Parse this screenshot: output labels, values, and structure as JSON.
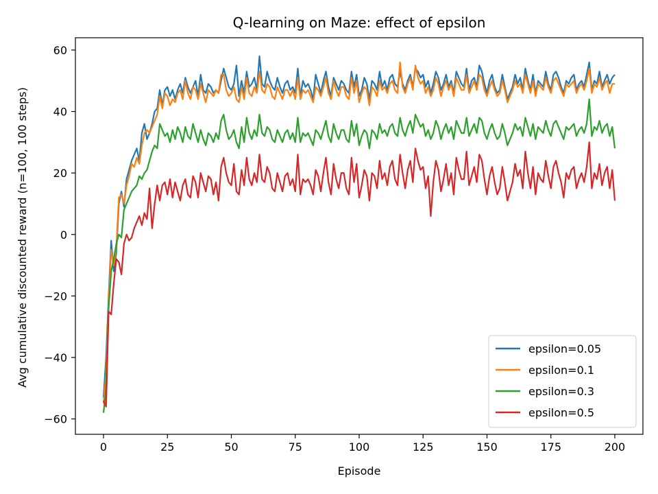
{
  "chart_data": {
    "type": "line",
    "title": "Q-learning on Maze: effect of epsilon",
    "xlabel": "Episode",
    "ylabel": "Avg cumulative discounted reward (n=100, 100 steps)",
    "xlim": [
      -11,
      211
    ],
    "ylim": [
      -65,
      64
    ],
    "xticks": [
      0,
      25,
      50,
      75,
      100,
      125,
      150,
      175,
      200
    ],
    "yticks": [
      -60,
      -40,
      -20,
      0,
      20,
      40,
      60
    ],
    "grid": false,
    "legend_position": "lower-right",
    "series": [
      {
        "name": "epsilon=0.05",
        "color": "#1f77b4",
        "values": [
          -53,
          -40,
          -20,
          -2,
          -12,
          -6,
          10,
          14,
          9,
          18,
          21,
          24,
          26,
          28,
          24,
          33,
          36,
          31,
          33,
          36,
          40,
          41,
          47,
          42,
          47,
          48,
          45,
          47,
          44,
          47,
          49,
          46,
          51,
          48,
          46,
          48,
          50,
          45,
          52,
          47,
          46,
          49,
          48,
          46,
          47,
          46,
          50,
          54,
          51,
          48,
          47,
          49,
          55,
          45,
          50,
          46,
          53,
          48,
          49,
          51,
          47,
          58,
          49,
          48,
          53,
          50,
          48,
          47,
          51,
          48,
          46,
          49,
          50,
          47,
          48,
          46,
          54,
          45,
          50,
          48,
          49,
          47,
          44,
          52,
          49,
          46,
          50,
          53,
          48,
          45,
          51,
          49,
          47,
          50,
          49,
          47,
          46,
          53,
          48,
          52,
          45,
          47,
          51,
          49,
          44,
          50,
          49,
          47,
          53,
          48,
          50,
          47,
          51,
          52,
          49,
          48,
          53,
          49,
          47,
          50,
          52,
          48,
          54,
          53,
          51,
          52,
          48,
          50,
          46,
          49,
          53,
          51,
          47,
          49,
          52,
          48,
          50,
          46,
          53,
          51,
          49,
          48,
          54,
          47,
          50,
          51,
          48,
          55,
          53,
          49,
          46,
          50,
          52,
          48,
          46,
          47,
          52,
          48,
          44,
          46,
          48,
          52,
          49,
          51,
          47,
          54,
          50,
          47,
          52,
          46,
          50,
          49,
          48,
          53,
          49,
          47,
          52,
          53,
          51,
          48,
          46,
          50,
          49,
          51,
          52,
          47,
          49,
          50,
          48,
          52,
          56,
          47,
          50,
          49,
          53,
          48,
          50,
          52,
          49,
          51,
          52
        ]
      },
      {
        "name": "epsilon=0.1",
        "color": "#ff7f0e",
        "values": [
          -55,
          -45,
          -22,
          -5,
          -10,
          -4,
          12,
          13,
          10,
          16,
          19,
          23,
          22,
          25,
          23,
          29,
          33,
          34,
          33,
          35,
          37,
          39,
          45,
          41,
          46,
          45,
          42,
          44,
          43,
          46,
          47,
          44,
          50,
          46,
          44,
          48,
          47,
          44,
          49,
          46,
          43,
          47,
          46,
          45,
          47,
          46,
          52,
          52,
          47,
          45,
          46,
          48,
          44,
          43,
          48,
          44,
          51,
          46,
          45,
          48,
          46,
          53,
          47,
          46,
          49,
          48,
          45,
          44,
          48,
          46,
          44,
          47,
          47,
          45,
          47,
          44,
          51,
          44,
          47,
          46,
          47,
          45,
          43,
          48,
          47,
          45,
          48,
          51,
          46,
          44,
          50,
          47,
          45,
          48,
          48,
          45,
          44,
          51,
          46,
          50,
          43,
          46,
          48,
          47,
          42,
          48,
          47,
          45,
          50,
          47,
          48,
          46,
          49,
          50,
          47,
          46,
          56,
          48,
          46,
          49,
          51,
          47,
          55,
          51,
          49,
          50,
          46,
          48,
          45,
          47,
          51,
          49,
          45,
          48,
          50,
          47,
          49,
          45,
          51,
          49,
          47,
          47,
          52,
          46,
          48,
          50,
          47,
          52,
          51,
          47,
          45,
          48,
          50,
          47,
          45,
          46,
          50,
          47,
          43,
          45,
          47,
          50,
          48,
          49,
          46,
          52,
          49,
          46,
          50,
          45,
          49,
          48,
          47,
          51,
          48,
          46,
          50,
          51,
          49,
          47,
          45,
          49,
          48,
          49,
          50,
          46,
          48,
          49,
          47,
          50,
          54,
          46,
          49,
          48,
          51,
          47,
          49,
          50,
          46,
          49,
          49
        ]
      },
      {
        "name": "epsilon=0.3",
        "color": "#2ca02c",
        "values": [
          -58,
          -50,
          -24,
          -12,
          -8,
          -3,
          0,
          -1,
          8,
          10,
          12,
          14,
          15,
          16,
          19,
          18,
          20,
          21,
          24,
          27,
          29,
          28,
          36,
          34,
          32,
          33,
          30,
          34,
          31,
          35,
          33,
          30,
          35,
          32,
          31,
          36,
          33,
          30,
          34,
          31,
          29,
          33,
          32,
          30,
          33,
          31,
          37,
          39,
          34,
          31,
          32,
          34,
          30,
          28,
          35,
          30,
          38,
          33,
          31,
          34,
          32,
          39,
          33,
          32,
          35,
          34,
          31,
          30,
          34,
          32,
          30,
          33,
          34,
          31,
          33,
          30,
          38,
          30,
          33,
          32,
          33,
          31,
          29,
          34,
          33,
          31,
          34,
          37,
          32,
          30,
          36,
          33,
          31,
          34,
          34,
          31,
          30,
          37,
          32,
          36,
          29,
          32,
          34,
          33,
          28,
          34,
          33,
          31,
          36,
          33,
          34,
          32,
          35,
          36,
          33,
          32,
          38,
          34,
          32,
          35,
          37,
          33,
          39,
          37,
          35,
          36,
          32,
          34,
          31,
          33,
          37,
          35,
          31,
          34,
          36,
          33,
          35,
          31,
          37,
          35,
          33,
          33,
          38,
          32,
          34,
          36,
          33,
          38,
          37,
          33,
          31,
          34,
          36,
          33,
          31,
          32,
          36,
          33,
          29,
          31,
          33,
          36,
          34,
          35,
          32,
          38,
          35,
          32,
          36,
          31,
          35,
          34,
          33,
          37,
          34,
          32,
          36,
          37,
          35,
          33,
          31,
          35,
          34,
          35,
          36,
          32,
          34,
          35,
          33,
          36,
          44,
          32,
          35,
          34,
          37,
          33,
          35,
          36,
          32,
          35,
          28
        ]
      },
      {
        "name": "epsilon=0.5",
        "color": "#d62728",
        "values": [
          -54,
          -56,
          -25,
          -26,
          -16,
          -8,
          -9,
          -13,
          -3,
          0,
          -2,
          -1,
          2,
          4,
          6,
          3,
          7,
          5,
          15,
          2,
          10,
          16,
          11,
          16,
          17,
          13,
          18,
          12,
          17,
          14,
          11,
          16,
          18,
          13,
          12,
          19,
          17,
          12,
          20,
          17,
          14,
          19,
          18,
          13,
          17,
          11,
          22,
          25,
          20,
          17,
          16,
          23,
          14,
          13,
          21,
          16,
          25,
          18,
          16,
          20,
          17,
          26,
          18,
          17,
          22,
          20,
          15,
          14,
          20,
          17,
          14,
          19,
          20,
          16,
          18,
          14,
          26,
          13,
          18,
          17,
          18,
          16,
          13,
          21,
          19,
          14,
          20,
          25,
          17,
          13,
          23,
          18,
          15,
          20,
          20,
          15,
          13,
          25,
          17,
          23,
          12,
          16,
          21,
          19,
          11,
          20,
          19,
          15,
          24,
          18,
          20,
          16,
          22,
          24,
          18,
          16,
          26,
          20,
          15,
          21,
          24,
          17,
          28,
          24,
          21,
          22,
          15,
          19,
          6,
          17,
          24,
          21,
          14,
          18,
          23,
          16,
          20,
          13,
          25,
          21,
          18,
          18,
          27,
          16,
          19,
          22,
          17,
          26,
          24,
          18,
          13,
          19,
          22,
          17,
          13,
          15,
          22,
          17,
          11,
          14,
          17,
          23,
          19,
          21,
          15,
          27,
          20,
          15,
          22,
          13,
          20,
          18,
          17,
          24,
          19,
          15,
          22,
          24,
          20,
          17,
          12,
          20,
          18,
          21,
          22,
          15,
          18,
          20,
          17,
          22,
          30,
          15,
          20,
          18,
          23,
          16,
          20,
          22,
          15,
          21,
          11
        ]
      }
    ]
  }
}
